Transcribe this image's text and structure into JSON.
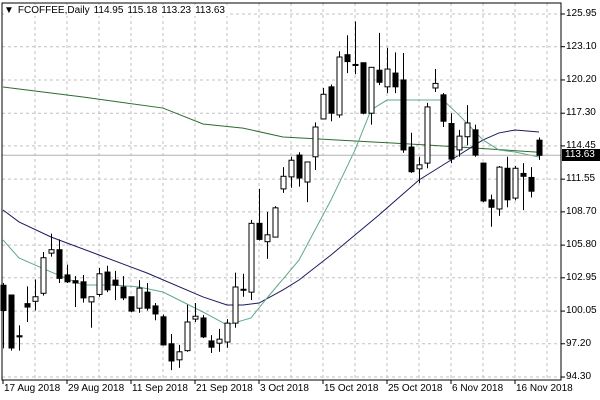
{
  "header": {
    "symbol": "FCOFFEE,Daily",
    "open": "114.95",
    "high": "115.18",
    "low": "113.23",
    "close": "113.63"
  },
  "colors": {
    "bull_body": "#ffffff",
    "bear_body": "#000000",
    "ma_long": "#2f6b2f",
    "ma_mid": "#1a1a5e",
    "ma_fast": "#5fa88a",
    "grid": "#c0c0c0",
    "current_line": "#b0b0b0"
  },
  "chart_data": {
    "type": "candlestick",
    "title": "FCOFFEE,Daily",
    "current_price": "113.63",
    "ylim": [
      94.3,
      125.95
    ],
    "y_ticks": [
      "125.95",
      "123.10",
      "120.20",
      "117.30",
      "114.45",
      "111.55",
      "108.70",
      "105.80",
      "102.95",
      "100.05",
      "97.20",
      "94.30"
    ],
    "x_ticks": [
      {
        "bar": 0,
        "label": "17 Aug 2018"
      },
      {
        "bar": 8,
        "label": "29 Aug 2018"
      },
      {
        "bar": 16,
        "label": "11 Sep 2018"
      },
      {
        "bar": 24,
        "label": "21 Sep 2018"
      },
      {
        "bar": 32,
        "label": "3 Oct 2018"
      },
      {
        "bar": 40,
        "label": "15 Oct 2018"
      },
      {
        "bar": 48,
        "label": "25 Oct 2018"
      },
      {
        "bar": 56,
        "label": "6 Nov 2018"
      },
      {
        "bar": 64,
        "label": "16 Nov 2018"
      }
    ],
    "ohlc": [
      [
        102.3,
        102.5,
        96.8,
        100.1
      ],
      [
        101.45,
        101.45,
        96.6,
        96.83
      ],
      [
        97.9,
        98.8,
        96.6,
        97.8
      ],
      [
        100.7,
        102.2,
        99.1,
        100.4
      ],
      [
        100.9,
        102.8,
        100.1,
        101.3
      ],
      [
        101.6,
        105.2,
        101.4,
        104.7
      ],
      [
        105.1,
        106.8,
        104.8,
        105.4
      ],
      [
        105.4,
        106.3,
        102.5,
        102.9
      ],
      [
        103.2,
        104.1,
        102.5,
        102.6
      ],
      [
        102.7,
        103.1,
        100.4,
        102.5
      ],
      [
        102.6,
        103.2,
        100.8,
        101.2
      ],
      [
        100.85,
        101.3,
        98.6,
        101.3
      ],
      [
        101.5,
        103.8,
        101.3,
        103.3
      ],
      [
        103.45,
        104.0,
        101.7,
        101.9
      ],
      [
        102.75,
        103.55,
        101.0,
        102.3
      ],
      [
        102.15,
        103.1,
        101.0,
        101.2
      ],
      [
        101.3,
        101.3,
        99.95,
        100.05
      ],
      [
        100.3,
        102.75,
        99.9,
        102.05
      ],
      [
        101.7,
        102.5,
        100.1,
        100.3
      ],
      [
        100.5,
        100.75,
        99.25,
        99.8
      ],
      [
        99.55,
        99.75,
        97.05,
        97.1
      ],
      [
        97.2,
        98.05,
        94.9,
        95.7
      ],
      [
        95.8,
        97.1,
        95.1,
        96.5
      ],
      [
        96.6,
        100.6,
        96.5,
        99.1
      ],
      [
        99.35,
        100.75,
        99.1,
        99.6
      ],
      [
        99.45,
        99.7,
        97.7,
        97.8
      ],
      [
        97.45,
        97.95,
        96.4,
        96.9
      ],
      [
        97.25,
        98.5,
        96.5,
        97.6
      ],
      [
        97.35,
        99.35,
        96.85,
        99.0
      ],
      [
        99.0,
        103.4,
        98.6,
        102.15
      ],
      [
        101.9,
        103.3,
        101.3,
        101.95
      ],
      [
        101.7,
        108.0,
        101.0,
        107.7
      ],
      [
        107.7,
        110.7,
        106.2,
        106.3
      ],
      [
        106.1,
        108.7,
        104.6,
        106.7
      ],
      [
        106.5,
        109.2,
        106.5,
        109.05
      ],
      [
        110.7,
        112.6,
        110.35,
        111.8
      ],
      [
        111.75,
        113.5,
        110.8,
        113.2
      ],
      [
        113.65,
        113.9,
        110.9,
        111.65
      ],
      [
        111.3,
        113.05,
        109.55,
        113.05
      ],
      [
        113.5,
        116.5,
        112.35,
        116.1
      ],
      [
        116.8,
        119.5,
        116.8,
        118.95
      ],
      [
        119.6,
        119.8,
        116.6,
        117.3
      ],
      [
        117.15,
        122.7,
        116.9,
        122.2
      ],
      [
        122.4,
        124.1,
        120.8,
        121.8
      ],
      [
        121.5,
        125.3,
        120.7,
        121.55
      ],
      [
        121.7,
        121.7,
        117.2,
        117.3
      ],
      [
        117.3,
        121.3,
        116.3,
        121.3
      ],
      [
        121.05,
        124.3,
        119.75,
        120.0
      ],
      [
        119.6,
        123.0,
        119.05,
        121.15
      ],
      [
        120.8,
        122.6,
        119.05,
        119.6
      ],
      [
        120.2,
        122.55,
        113.85,
        114.1
      ],
      [
        114.35,
        115.6,
        112.1,
        112.2
      ],
      [
        112.45,
        113.5,
        111.2,
        112.8
      ],
      [
        112.95,
        118.2,
        112.5,
        117.85
      ],
      [
        119.5,
        121.15,
        119.15,
        119.9
      ],
      [
        118.9,
        119.05,
        116.1,
        116.6
      ],
      [
        116.4,
        117.3,
        112.95,
        113.3
      ],
      [
        114.1,
        115.85,
        113.5,
        115.3
      ],
      [
        115.25,
        118.0,
        114.5,
        116.45
      ],
      [
        115.85,
        116.3,
        113.5,
        113.65
      ],
      [
        112.95,
        113.0,
        109.55,
        109.65
      ],
      [
        109.75,
        110.2,
        107.4,
        109.1
      ],
      [
        108.95,
        112.7,
        108.35,
        112.6
      ],
      [
        112.5,
        113.5,
        109.1,
        109.75
      ],
      [
        109.9,
        112.7,
        109.7,
        112.5
      ],
      [
        112.05,
        112.95,
        108.85,
        111.8
      ],
      [
        111.7,
        112.6,
        109.95,
        110.5
      ],
      [
        114.95,
        115.18,
        113.23,
        113.63
      ]
    ],
    "series": [
      {
        "name": "ma_long",
        "points": [
          [
            0,
            119.59
          ],
          [
            10,
            118.71
          ],
          [
            20,
            117.75
          ],
          [
            25,
            116.36
          ],
          [
            30,
            116.0
          ],
          [
            35,
            115.23
          ],
          [
            53,
            114.53
          ],
          [
            67,
            113.9
          ]
        ]
      },
      {
        "name": "ma_mid",
        "points": [
          [
            0,
            108.86
          ],
          [
            2,
            107.82
          ],
          [
            6,
            106.51
          ],
          [
            12,
            104.94
          ],
          [
            18,
            103.37
          ],
          [
            25,
            101.28
          ],
          [
            28,
            100.58
          ],
          [
            30,
            100.58
          ],
          [
            32,
            100.75
          ],
          [
            35,
            101.89
          ],
          [
            37,
            102.76
          ],
          [
            41,
            104.94
          ],
          [
            47,
            108.43
          ],
          [
            52,
            111.48
          ],
          [
            56,
            113.22
          ],
          [
            60,
            114.97
          ],
          [
            62,
            115.58
          ],
          [
            64,
            115.84
          ],
          [
            67,
            115.66
          ]
        ]
      },
      {
        "name": "ma_fast",
        "points": [
          [
            0,
            106.25
          ],
          [
            2,
            104.68
          ],
          [
            6,
            103.46
          ],
          [
            10,
            102.32
          ],
          [
            14,
            102.32
          ],
          [
            17,
            102.15
          ],
          [
            20,
            101.71
          ],
          [
            25,
            99.97
          ],
          [
            28,
            98.84
          ],
          [
            31,
            99.45
          ],
          [
            33,
            101.19
          ],
          [
            37,
            104.5
          ],
          [
            41,
            109.73
          ],
          [
            44,
            114.09
          ],
          [
            46,
            117.58
          ],
          [
            48,
            118.45
          ],
          [
            52,
            118.45
          ],
          [
            55,
            118.45
          ],
          [
            57,
            117.14
          ],
          [
            60,
            114.97
          ],
          [
            62,
            114.09
          ],
          [
            64,
            113.92
          ],
          [
            67,
            113.48
          ]
        ]
      }
    ]
  }
}
